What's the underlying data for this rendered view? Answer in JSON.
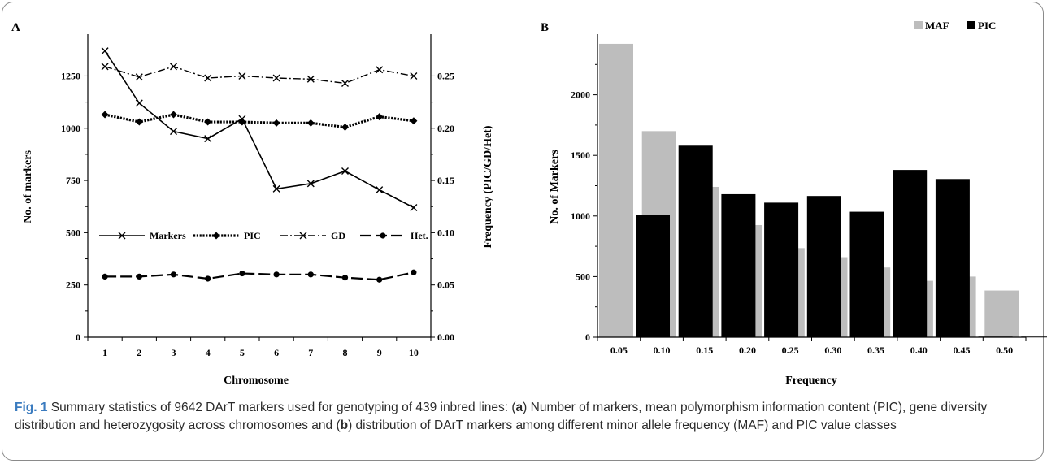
{
  "chart_data": [
    {
      "type": "line",
      "panel_label": "A",
      "xlabel": "Chromosome",
      "ylabel": "No. of markers",
      "ylabel_right": "Frequency (PIC/GD/Het)",
      "categories": [
        "1",
        "2",
        "3",
        "4",
        "5",
        "6",
        "7",
        "8",
        "9",
        "10"
      ],
      "ylim": [
        0,
        1450
      ],
      "yticks": [
        "0",
        "250",
        "500",
        "750",
        "1000",
        "1250"
      ],
      "ylim_right": [
        0,
        0.29
      ],
      "yticks_right": [
        "0.00",
        "0.05",
        "0.10",
        "0.15",
        "0.20",
        "0.25"
      ],
      "legend_position": "middle",
      "series": [
        {
          "name": "Markers",
          "axis": "left",
          "style": "solid",
          "marker": "x",
          "values": [
            1370,
            1120,
            985,
            950,
            1045,
            710,
            735,
            795,
            705,
            620
          ]
        },
        {
          "name": "PIC",
          "axis": "right",
          "style": "dotted",
          "marker": "diamond",
          "values": [
            0.213,
            0.206,
            0.213,
            0.206,
            0.206,
            0.205,
            0.205,
            0.201,
            0.211,
            0.207
          ]
        },
        {
          "name": "GD",
          "axis": "right",
          "style": "dashdot",
          "marker": "x",
          "values": [
            0.259,
            0.249,
            0.259,
            0.248,
            0.25,
            0.248,
            0.247,
            0.243,
            0.256,
            0.25
          ]
        },
        {
          "name": "Het.",
          "axis": "right",
          "style": "dashed",
          "marker": "circle",
          "values": [
            0.058,
            0.058,
            0.06,
            0.056,
            0.061,
            0.06,
            0.06,
            0.057,
            0.055,
            0.062
          ]
        }
      ]
    },
    {
      "type": "bar",
      "panel_label": "B",
      "xlabel": "Frequency",
      "ylabel": "No. of Markers",
      "categories": [
        "0.05",
        "0.10",
        "0.15",
        "0.20",
        "0.25",
        "0.30",
        "0.35",
        "0.40",
        "0.45",
        "0.50"
      ],
      "ylim": [
        0,
        2500
      ],
      "yticks": [
        "0",
        "500",
        "1000",
        "1500",
        "2000"
      ],
      "legend_position": "top-right",
      "series": [
        {
          "name": "MAF",
          "color": "#bdbdbd",
          "values": [
            2420,
            1700,
            1240,
            925,
            735,
            660,
            575,
            465,
            500,
            385
          ]
        },
        {
          "name": "PIC",
          "color": "#000000",
          "values": [
            1010,
            1580,
            1180,
            1110,
            1165,
            1035,
            1380,
            1305,
            5,
            5
          ]
        }
      ]
    }
  ],
  "caption": {
    "fig_label": "Fig. 1",
    "t1": " Summary statistics of 9642 DArT markers used for genotyping of 439 inbred lines: (",
    "a": "a",
    "t2": ") Number of markers, mean polymorphism information content (PIC), gene diversity distribution and heterozygosity across chromosomes and (",
    "b": "b",
    "t3": ") distribution of DArT markers among different minor allele frequency (MAF) and PIC value classes"
  }
}
